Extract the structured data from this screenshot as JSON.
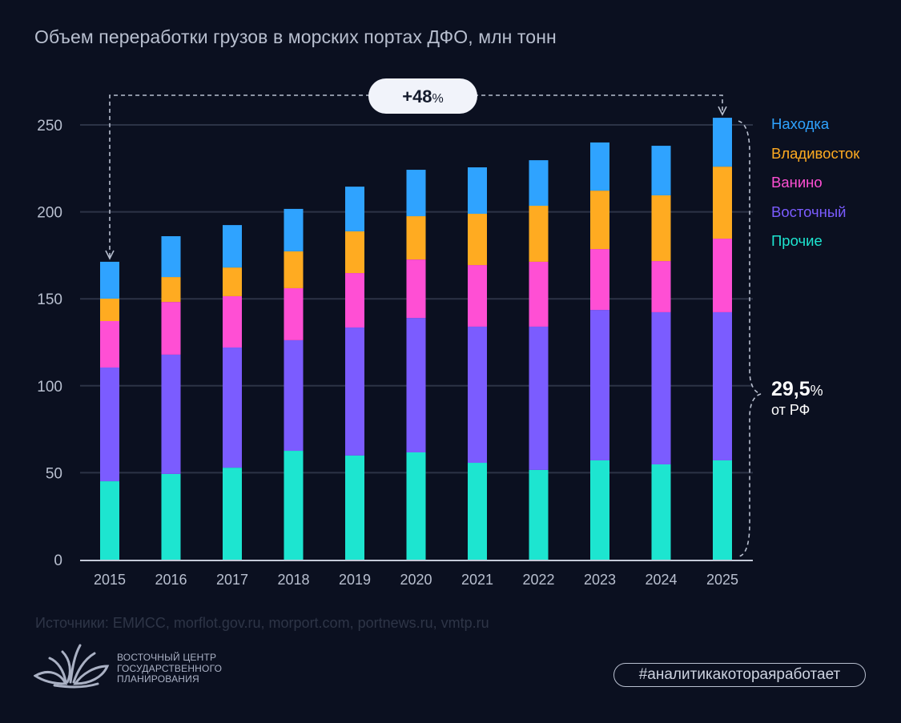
{
  "title": "Объем переработки грузов в морских портах ДФО, млн тонн",
  "growth_badge": {
    "value": "+48",
    "unit": "%"
  },
  "share_note": {
    "value": "29,5",
    "unit": "%",
    "label": "от РФ"
  },
  "source": "Источники: ЕМИСС, morflot.gov.ru, morport.com, portnews.ru, vmtp.ru",
  "logo": {
    "icon": "lotus-logo-icon",
    "lines": [
      "ВОСТОЧНЫЙ ЦЕНТР",
      "ГОСУДАРСТВЕННОГО",
      "ПЛАНИРОВАНИЯ"
    ]
  },
  "hashtag": "#аналитикакотораяработает",
  "chart_data": {
    "type": "bar",
    "stacked": true,
    "title": "Объем переработки грузов в морских портах ДФО, млн тонн",
    "xlabel": "",
    "ylabel": "",
    "ylim": [
      0,
      250
    ],
    "yticks": [
      0,
      50,
      100,
      150,
      200,
      250
    ],
    "grid": true,
    "legend_position": "right",
    "categories": [
      "2015",
      "2016",
      "2017",
      "2018",
      "2019",
      "2020",
      "2021",
      "2022",
      "2023",
      "2024",
      "2025"
    ],
    "series": [
      {
        "name": "Прочие",
        "color": "#1de5d0",
        "values": [
          45.1,
          49.3,
          52.9,
          62.6,
          59.9,
          61.7,
          55.7,
          51.6,
          57.1,
          54.8,
          57.1
        ]
      },
      {
        "name": "Восточный",
        "color": "#7b5cff",
        "values": [
          65.4,
          68.6,
          69.1,
          63.6,
          73.6,
          77.3,
          78.3,
          82.4,
          86.5,
          87.5,
          85.2
        ]
      },
      {
        "name": "Ванино",
        "color": "#ff4fd4",
        "values": [
          26.7,
          30.3,
          29.5,
          29.9,
          31.3,
          33.6,
          35.4,
          37.3,
          35.0,
          29.4,
          42.3
        ]
      },
      {
        "name": "Владивосток",
        "color": "#ffab21",
        "values": [
          12.9,
          14.3,
          16.5,
          21.2,
          24.0,
          24.9,
          29.5,
          32.2,
          33.6,
          37.8,
          41.4
        ]
      },
      {
        "name": "Находка",
        "color": "#2fa3ff",
        "values": [
          21.2,
          23.5,
          24.4,
          24.4,
          25.7,
          26.7,
          26.7,
          26.2,
          27.7,
          28.5,
          28.1
        ]
      }
    ],
    "annotations": [
      {
        "type": "growth-arrow",
        "from": "2015",
        "to": "2025",
        "text": "+48%"
      },
      {
        "type": "brace",
        "target": "2025",
        "text": "29,5% от РФ"
      }
    ]
  }
}
